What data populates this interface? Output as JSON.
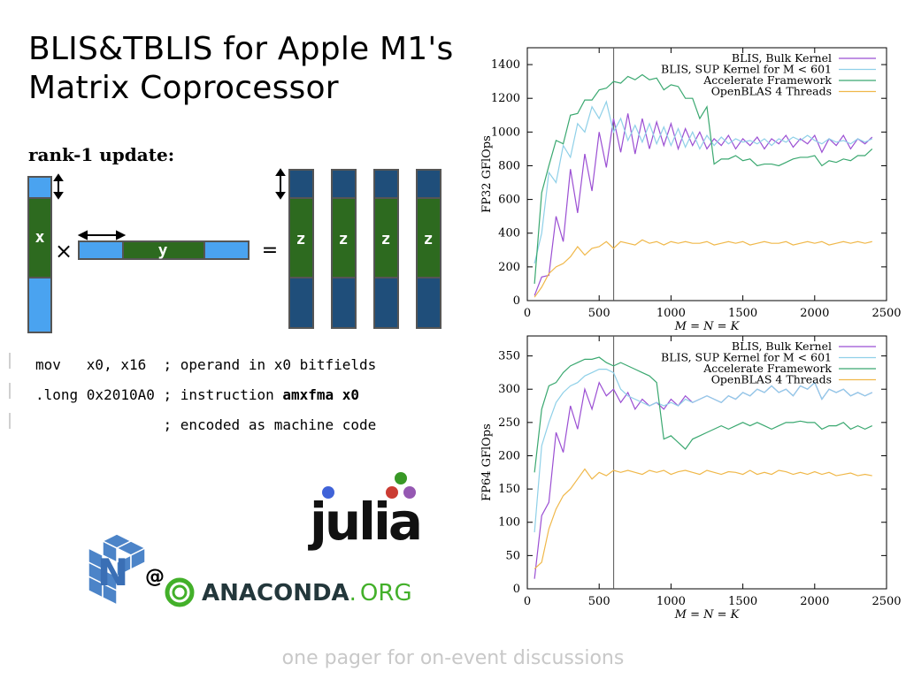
{
  "slide": {
    "title_line1": "BLIS&TBLIS for Apple M1's",
    "title_line2": "Matrix Coprocessor",
    "subtitle": "rank-1 update:",
    "footer": "one pager for on-event discussions"
  },
  "diagram": {
    "x_label": "x",
    "y_label": "y",
    "z_label": "z",
    "times_symbol": "×",
    "equals_symbol": "=",
    "colors": {
      "light": "#4aa3f0",
      "green": "#2d6a1f",
      "dark": "#1f4e7a",
      "stroke": "#555555"
    }
  },
  "code": {
    "line1": "mov   x0, x16  ; operand in x0 bitfields",
    "line2_prefix": ".long 0x2010A0 ; instruction ",
    "line2_bold": "amxfma x0",
    "line3": "               ; encoded as machine code"
  },
  "logos": {
    "julia": "julia",
    "at_sign": "@",
    "anaconda_bold": "ANACONDA",
    "anaconda_dot": ".",
    "anaconda_org": "ORG"
  },
  "chart_data": [
    {
      "type": "line",
      "ylabel": "FP32 GFlOps",
      "xlabel": "M = N = K",
      "xlim": [
        0,
        2500
      ],
      "ylim": [
        0,
        1500
      ],
      "xticks": [
        0,
        500,
        1000,
        1500,
        2000,
        2500
      ],
      "yticks": [
        0,
        200,
        400,
        600,
        800,
        1000,
        1200,
        1400
      ],
      "vline_x": 601,
      "legend_position": "top-right",
      "x": [
        50,
        100,
        150,
        200,
        250,
        300,
        350,
        400,
        450,
        500,
        550,
        600,
        650,
        700,
        750,
        800,
        850,
        900,
        950,
        1000,
        1050,
        1100,
        1150,
        1200,
        1250,
        1300,
        1350,
        1400,
        1450,
        1500,
        1550,
        1600,
        1650,
        1700,
        1750,
        1800,
        1850,
        1900,
        1950,
        2000,
        2050,
        2100,
        2150,
        2200,
        2250,
        2300,
        2350,
        2400
      ],
      "series": [
        {
          "name": "BLIS, Bulk Kernel",
          "color": "#9b4fd3",
          "values": [
            30,
            140,
            150,
            500,
            350,
            780,
            520,
            870,
            650,
            1000,
            790,
            1080,
            880,
            1110,
            870,
            1080,
            900,
            1060,
            920,
            1050,
            900,
            1020,
            920,
            1000,
            900,
            960,
            920,
            980,
            900,
            960,
            920,
            970,
            900,
            960,
            930,
            980,
            910,
            960,
            930,
            980,
            880,
            960,
            920,
            980,
            900,
            960,
            930,
            970
          ]
        },
        {
          "name": "BLIS, SUP Kernel for M < 601",
          "color": "#8fd0e8",
          "values": [
            220,
            400,
            760,
            700,
            920,
            850,
            1050,
            1000,
            1150,
            1080,
            1180,
            1000,
            1080,
            950,
            1040,
            940,
            1050,
            930,
            1030,
            920,
            1020,
            910,
            1000,
            900,
            980,
            920,
            970,
            930,
            960,
            940,
            950,
            930,
            960,
            920,
            960,
            940,
            970,
            950,
            980,
            950,
            930,
            960,
            940,
            950,
            930,
            960,
            940,
            960
          ]
        },
        {
          "name": "Accelerate Framework",
          "color": "#3aa870",
          "values": [
            100,
            640,
            800,
            950,
            930,
            1100,
            1110,
            1190,
            1190,
            1250,
            1260,
            1300,
            1290,
            1330,
            1310,
            1340,
            1310,
            1320,
            1250,
            1280,
            1270,
            1200,
            1200,
            1080,
            1150,
            810,
            840,
            840,
            860,
            830,
            840,
            800,
            810,
            810,
            800,
            820,
            840,
            850,
            850,
            860,
            800,
            830,
            820,
            840,
            830,
            860,
            860,
            900
          ]
        },
        {
          "name": "OpenBLAS 4 Threads",
          "color": "#f0b84a",
          "values": [
            20,
            80,
            160,
            200,
            220,
            260,
            320,
            270,
            310,
            320,
            350,
            310,
            350,
            340,
            330,
            360,
            340,
            350,
            330,
            350,
            340,
            350,
            340,
            340,
            350,
            330,
            340,
            350,
            340,
            350,
            330,
            340,
            350,
            340,
            340,
            350,
            330,
            340,
            350,
            340,
            350,
            330,
            340,
            350,
            340,
            350,
            340,
            350
          ]
        }
      ]
    },
    {
      "type": "line",
      "ylabel": "FP64 GFlOps",
      "xlabel": "M = N = K",
      "xlim": [
        0,
        2500
      ],
      "ylim": [
        0,
        380
      ],
      "xticks": [
        0,
        500,
        1000,
        1500,
        2000,
        2500
      ],
      "yticks": [
        0,
        50,
        100,
        150,
        200,
        250,
        300,
        350
      ],
      "vline_x": 601,
      "legend_position": "top-right",
      "x": [
        50,
        100,
        150,
        200,
        250,
        300,
        350,
        400,
        450,
        500,
        550,
        600,
        650,
        700,
        750,
        800,
        850,
        900,
        950,
        1000,
        1050,
        1100,
        1150,
        1200,
        1250,
        1300,
        1350,
        1400,
        1450,
        1500,
        1550,
        1600,
        1650,
        1700,
        1750,
        1800,
        1850,
        1900,
        1950,
        2000,
        2050,
        2100,
        2150,
        2200,
        2250,
        2300,
        2350,
        2400
      ],
      "series": [
        {
          "name": "BLIS, Bulk Kernel",
          "color": "#9b4fd3",
          "values": [
            15,
            110,
            130,
            235,
            205,
            275,
            240,
            300,
            270,
            310,
            290,
            300,
            280,
            295,
            270,
            285,
            275,
            280,
            270,
            285,
            275,
            290,
            280,
            285,
            290,
            285,
            280,
            290,
            285,
            295,
            290,
            300,
            295,
            305,
            295,
            300,
            290,
            305,
            300,
            310,
            285,
            300,
            295,
            300,
            290,
            295,
            290,
            295
          ]
        },
        {
          "name": "BLIS, SUP Kernel for M < 601",
          "color": "#8fd0e8",
          "values": [
            85,
            215,
            250,
            280,
            295,
            305,
            310,
            320,
            325,
            330,
            330,
            325,
            300,
            290,
            285,
            280,
            275,
            280,
            275,
            280,
            275,
            285,
            280,
            285,
            290,
            285,
            280,
            290,
            285,
            295,
            290,
            300,
            295,
            305,
            295,
            300,
            290,
            305,
            300,
            310,
            285,
            300,
            295,
            300,
            290,
            295,
            290,
            295
          ]
        },
        {
          "name": "Accelerate Framework",
          "color": "#3aa870",
          "values": [
            175,
            270,
            305,
            310,
            325,
            335,
            340,
            345,
            345,
            348,
            340,
            335,
            340,
            335,
            330,
            325,
            320,
            310,
            225,
            230,
            220,
            210,
            225,
            230,
            235,
            240,
            245,
            240,
            245,
            250,
            245,
            250,
            245,
            240,
            245,
            250,
            250,
            252,
            250,
            250,
            240,
            245,
            245,
            250,
            240,
            245,
            240,
            245
          ]
        },
        {
          "name": "OpenBLAS 4 Threads",
          "color": "#f0b84a",
          "values": [
            30,
            40,
            90,
            120,
            140,
            150,
            165,
            180,
            165,
            175,
            170,
            178,
            175,
            178,
            175,
            172,
            178,
            175,
            178,
            172,
            176,
            178,
            175,
            172,
            178,
            175,
            172,
            176,
            175,
            172,
            178,
            172,
            175,
            172,
            178,
            176,
            172,
            175,
            172,
            176,
            172,
            175,
            170,
            172,
            174,
            170,
            172,
            170
          ]
        }
      ]
    }
  ]
}
